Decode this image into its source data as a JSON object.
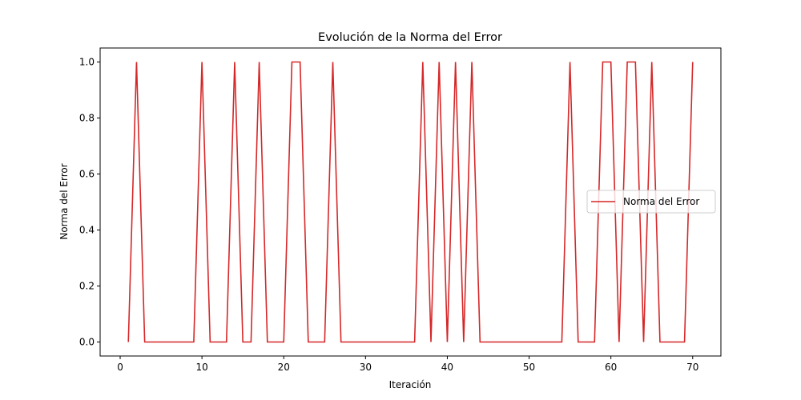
{
  "chart_data": {
    "type": "line",
    "title": "Evolución de la Norma del Error",
    "xlabel": "Iteración",
    "ylabel": "Norma del Error",
    "xlim": [
      -2.45,
      73.45
    ],
    "ylim": [
      -0.05,
      1.05
    ],
    "xticks": [
      0,
      10,
      20,
      30,
      40,
      50,
      60,
      70
    ],
    "yticks": [
      0.0,
      0.2,
      0.4,
      0.6,
      0.8,
      1.0
    ],
    "grid": false,
    "legend_position": "center-right",
    "x": [
      1,
      2,
      3,
      4,
      5,
      6,
      7,
      8,
      9,
      10,
      11,
      12,
      13,
      14,
      15,
      16,
      17,
      18,
      19,
      20,
      21,
      22,
      23,
      24,
      25,
      26,
      27,
      28,
      29,
      30,
      31,
      32,
      33,
      34,
      35,
      36,
      37,
      38,
      39,
      40,
      41,
      42,
      43,
      44,
      45,
      46,
      47,
      48,
      49,
      50,
      51,
      52,
      53,
      54,
      55,
      56,
      57,
      58,
      59,
      60,
      61,
      62,
      63,
      64,
      65,
      66,
      67,
      68,
      69,
      70
    ],
    "series": [
      {
        "name": "Norma del Error",
        "color": "#d62728",
        "values": [
          0,
          1,
          0,
          0,
          0,
          0,
          0,
          0,
          0,
          1,
          0,
          0,
          0,
          1,
          0,
          0,
          1,
          0,
          0,
          0,
          1,
          1,
          0,
          0,
          0,
          1,
          0,
          0,
          0,
          0,
          0,
          0,
          0,
          0,
          0,
          0,
          1,
          0,
          1,
          0,
          1,
          0,
          1,
          0,
          0,
          0,
          0,
          0,
          0,
          0,
          0,
          0,
          0,
          0,
          1,
          0,
          0,
          0,
          1,
          1,
          0,
          1,
          1,
          0,
          1,
          0,
          0,
          0,
          0,
          1
        ]
      }
    ]
  }
}
